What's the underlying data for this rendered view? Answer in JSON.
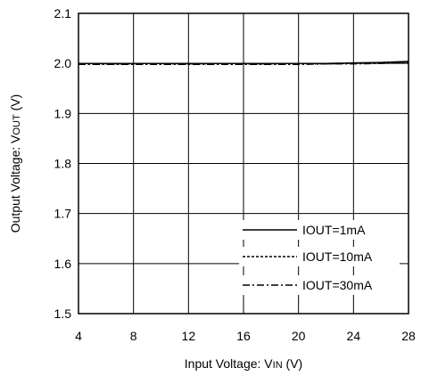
{
  "chart_data": {
    "type": "line",
    "xlabel": "Input Voltage: VIN (V)",
    "xlabel_parts": {
      "prefix": "Input Voltage: V",
      "sub": "IN",
      "suffix": " (V)"
    },
    "ylabel": "Output Voltage: VOUT (V)",
    "ylabel_parts": {
      "prefix": "Output Voltage: V",
      "sub": "OUT",
      "suffix": " (V)"
    },
    "xlim": [
      4,
      28
    ],
    "ylim": [
      1.5,
      2.1
    ],
    "x_ticks": [
      "4",
      "8",
      "12",
      "16",
      "20",
      "24",
      "28"
    ],
    "y_ticks": [
      "1.5",
      "1.6",
      "1.7",
      "1.8",
      "1.9",
      "2.0",
      "2.1"
    ],
    "grid": true,
    "legend_position": "bottom-right",
    "series": [
      {
        "name": "IOUT=1mA",
        "style": "solid",
        "color": "#000000",
        "x": [
          4,
          8,
          12,
          16,
          20,
          22,
          24,
          26,
          27,
          28
        ],
        "y": [
          2.0,
          2.0,
          2.0,
          2.0,
          2.0,
          2.0,
          2.001,
          2.002,
          2.003,
          2.004
        ]
      },
      {
        "name": "IOUT=10mA",
        "style": "dashed",
        "color": "#000000",
        "x": [
          4,
          8,
          12,
          16,
          20,
          22,
          24,
          26,
          27,
          28
        ],
        "y": [
          1.999,
          1.999,
          1.999,
          1.999,
          1.999,
          1.999,
          2.0,
          2.001,
          2.002,
          2.003
        ]
      },
      {
        "name": "IOUT=30mA",
        "style": "dashdot",
        "color": "#000000",
        "x": [
          4,
          8,
          12,
          16,
          20,
          22,
          24,
          26,
          27,
          28
        ],
        "y": [
          1.998,
          1.998,
          1.998,
          1.998,
          1.998,
          1.999,
          1.999,
          2.0,
          2.001,
          2.002
        ]
      }
    ]
  }
}
